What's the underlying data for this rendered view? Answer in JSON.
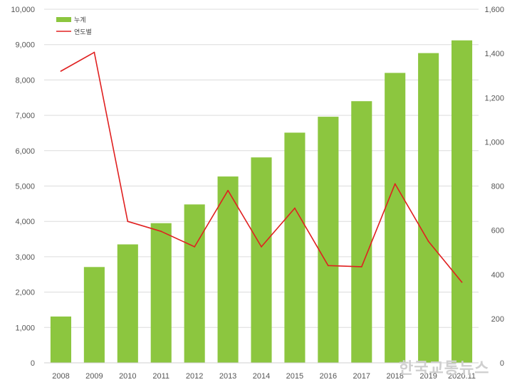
{
  "chart_data": {
    "type": "bar+line",
    "categories": [
      "2008",
      "2009",
      "2010",
      "2011",
      "2012",
      "2013",
      "2014",
      "2015",
      "2016",
      "2017",
      "2018",
      "2019",
      "2020.11"
    ],
    "series": [
      {
        "name": "누계",
        "type": "bar",
        "axis": "left",
        "color": "#8cc63f",
        "values": [
          1310,
          2710,
          3350,
          3950,
          4480,
          5270,
          5810,
          6510,
          6960,
          7400,
          8200,
          8760,
          9120
        ]
      },
      {
        "name": "연도별",
        "type": "line",
        "axis": "right",
        "color": "#e02020",
        "values": [
          1320,
          1405,
          640,
          595,
          525,
          780,
          525,
          700,
          440,
          435,
          810,
          550,
          365
        ]
      }
    ],
    "y_left": {
      "min": 0,
      "max": 10000,
      "ticks": [
        "0",
        "1,000",
        "2,000",
        "3,000",
        "4,000",
        "5,000",
        "6,000",
        "7,000",
        "8,000",
        "9,000",
        "10,000"
      ]
    },
    "y_right": {
      "min": 0,
      "max": 1600,
      "ticks": [
        "0",
        "200",
        "400",
        "600",
        "800",
        "1,000",
        "1,200",
        "1,400",
        "1,600"
      ]
    },
    "grid": true,
    "legend_position": "top-left"
  },
  "watermark": "한국교통뉴스"
}
